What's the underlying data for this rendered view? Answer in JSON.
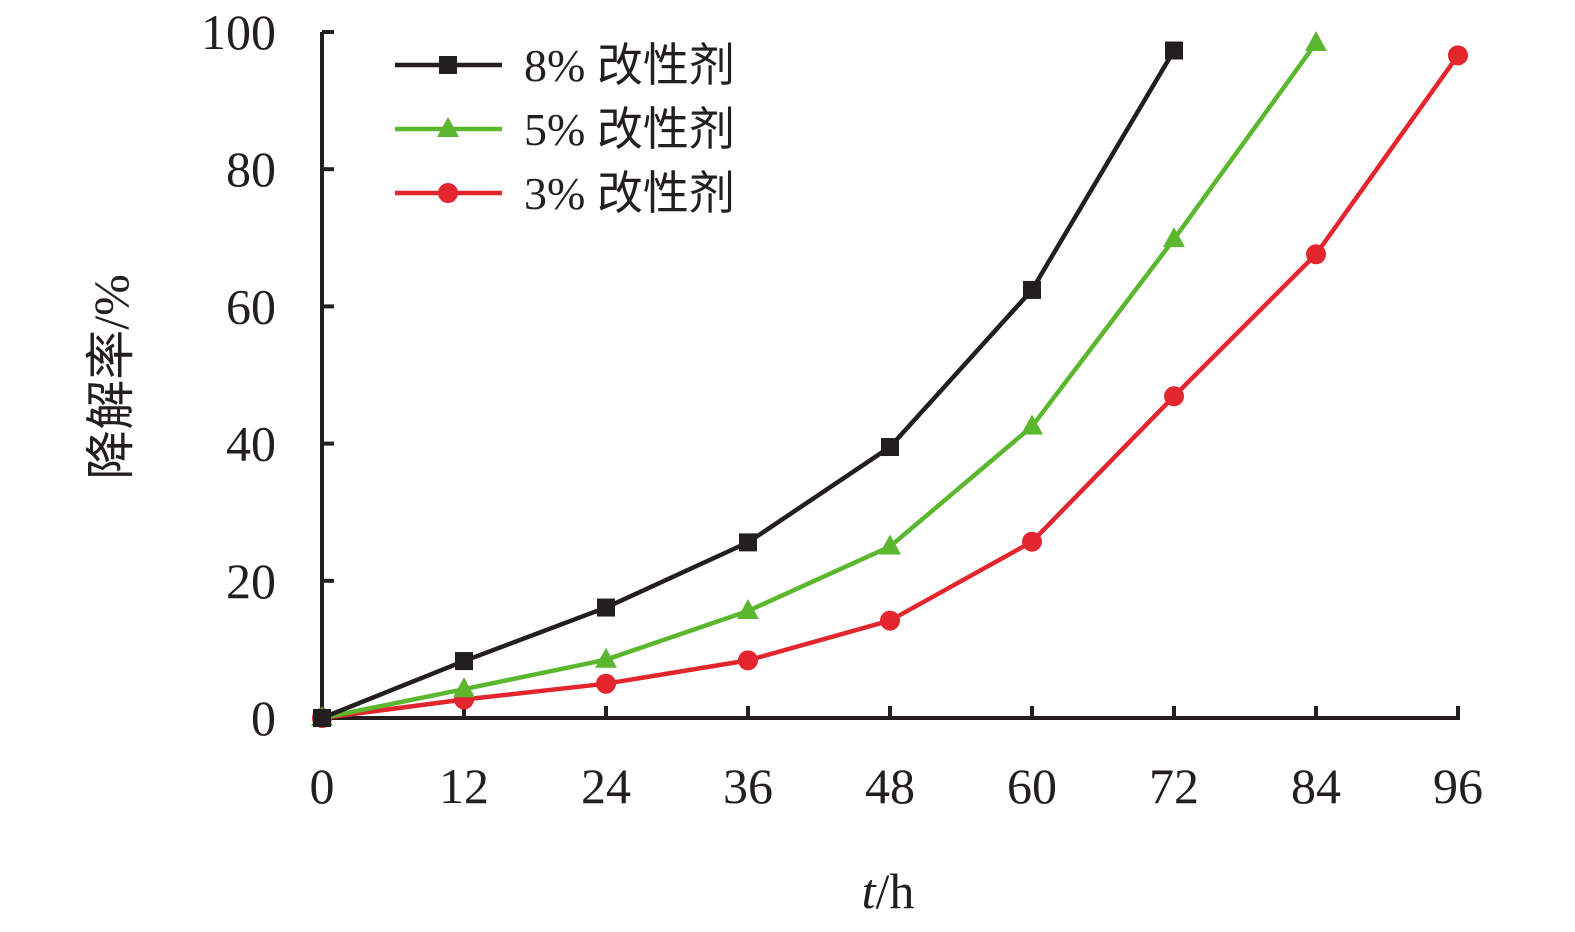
{
  "chart_data": {
    "type": "line",
    "title": "",
    "xlabel": {
      "italic": "t",
      "rest": "/h"
    },
    "ylabel": "降解率/%",
    "x": [
      0,
      12,
      24,
      36,
      48,
      60,
      72,
      84,
      96
    ],
    "xlim": [
      0,
      96
    ],
    "ylim": [
      0,
      100
    ],
    "xticks": [
      "0",
      "12",
      "24",
      "36",
      "48",
      "60",
      "72",
      "84",
      "96"
    ],
    "yticks": [
      "0",
      "20",
      "40",
      "60",
      "80",
      "100"
    ],
    "grid": false,
    "legend_position": "top-left",
    "series": [
      {
        "name": "8% 改性剂",
        "color": "#231f20",
        "marker": "square",
        "x": [
          0,
          12,
          24,
          36,
          48,
          60,
          72
        ],
        "values": [
          0,
          8.3,
          16.1,
          25.6,
          39.5,
          62.4,
          97.3
        ]
      },
      {
        "name": "5% 改性剂",
        "color": "#5bb82e",
        "marker": "triangle",
        "x": [
          0,
          12,
          24,
          36,
          48,
          60,
          72,
          84
        ],
        "values": [
          0,
          4.2,
          8.5,
          15.6,
          25.0,
          42.5,
          69.8,
          98.4
        ]
      },
      {
        "name": "3% 改性剂",
        "color": "#e3262d",
        "marker": "circle",
        "x": [
          0,
          12,
          24,
          36,
          48,
          60,
          72,
          84,
          96
        ],
        "values": [
          0,
          2.7,
          5.0,
          8.4,
          14.2,
          25.7,
          46.9,
          67.6,
          96.6
        ]
      }
    ]
  }
}
